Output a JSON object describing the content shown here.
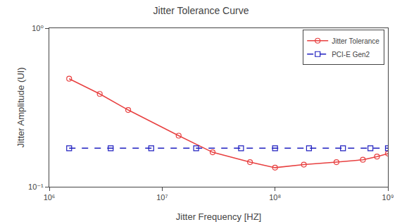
{
  "chart_data": {
    "type": "line",
    "title": "Jitter Tolerance Curve",
    "xlabel": "Jitter Frequency [HZ]",
    "ylabel": "Jitter Amplitude (UI)",
    "log": true,
    "grid": false,
    "legend": "upper right",
    "series": [
      {
        "name": "Jitter Tolerance",
        "color": "#e84040",
        "marker": "circle",
        "line_style": "solid",
        "x": [
          1500000.0,
          2800000.0,
          5000000.0,
          14000000.0,
          28000000.0,
          60000000.0,
          100000000.0,
          180000000.0,
          350000000.0,
          600000000.0,
          800000000.0,
          1000000000.0
        ],
        "values": [
          0.48,
          0.385,
          0.305,
          0.21,
          0.165,
          0.143,
          0.132,
          0.138,
          0.143,
          0.148,
          0.155,
          0.162
        ]
      },
      {
        "name": "PCI-E Gen2",
        "color": "#2020c0",
        "marker": "square",
        "line_style": "dash",
        "x": [
          1500000.0,
          3500000.0,
          8000000.0,
          20000000.0,
          50000000.0,
          100000000.0,
          200000000.0,
          400000000.0,
          700000000.0,
          1000000000.0
        ],
        "values": [
          0.175,
          0.175,
          0.175,
          0.175,
          0.175,
          0.175,
          0.175,
          0.175,
          0.175,
          0.175
        ]
      }
    ],
    "xlim": [
      1000000,
      1000000000
    ],
    "ylim": [
      0.1,
      1.0
    ],
    "xticks": [
      {
        "value": 1000000,
        "label": "10⁶"
      },
      {
        "value": 10000000,
        "label": "10⁷"
      },
      {
        "value": 100000000,
        "label": "10⁸"
      },
      {
        "value": 1000000000,
        "label": "10⁹"
      }
    ],
    "yticks": [
      {
        "value": 0.1,
        "label": "10⁻¹"
      },
      {
        "value": 1,
        "label": "10⁰"
      }
    ]
  }
}
